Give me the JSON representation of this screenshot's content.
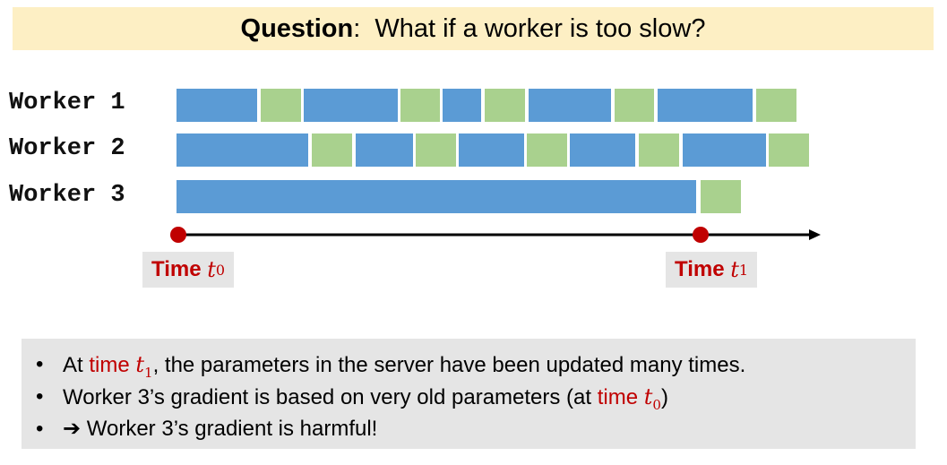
{
  "title": {
    "bold": "Question",
    "rest": ":  What if a worker is too slow?"
  },
  "workers": [
    {
      "label": "Worker 1",
      "segments": [
        "compute",
        "update",
        "compute",
        "update",
        "compute",
        "update",
        "compute",
        "update",
        "compute",
        "update"
      ]
    },
    {
      "label": "Worker 2",
      "segments": [
        "compute",
        "update",
        "compute",
        "update",
        "compute",
        "update",
        "compute",
        "update",
        "compute",
        "update"
      ]
    },
    {
      "label": "Worker 3",
      "segments": [
        "compute",
        "update"
      ]
    }
  ],
  "colors": {
    "compute": "#5b9bd5",
    "update": "#a9d18e",
    "timeline": "#000000",
    "marker": "#c00000",
    "title_bg": "#fdefc4"
  },
  "time_markers": [
    {
      "label": "Time",
      "symbol": "t",
      "subscript": "0"
    },
    {
      "label": "Time",
      "symbol": "t",
      "subscript": "1"
    }
  ],
  "notes": {
    "bullet1": {
      "pre": "At ",
      "red": "time ",
      "sym": "t",
      "sub": "1",
      "post": ", the parameters in the server have been updated many times."
    },
    "bullet2": {
      "pre": "Worker 3’s gradient is based on very old parameters (at ",
      "red": "time ",
      "sym": "t",
      "sub": "0",
      "post": ")"
    },
    "bullet3": {
      "arrow": "➔",
      "text": " Worker 3’s gradient is harmful!"
    }
  }
}
